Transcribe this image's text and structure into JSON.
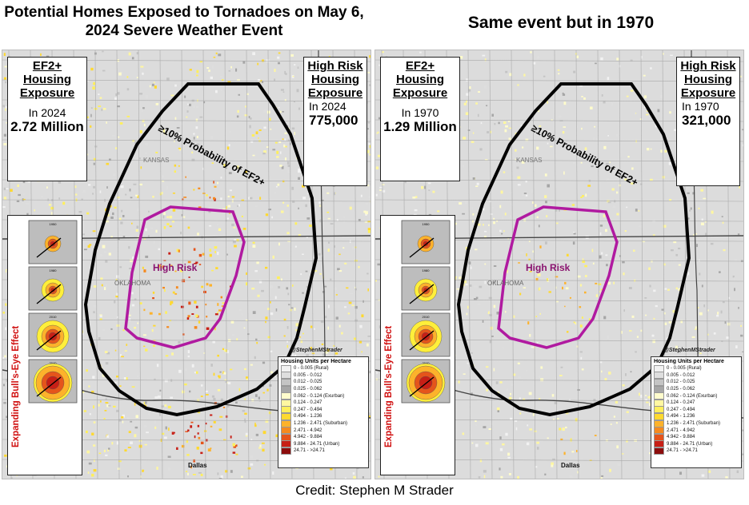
{
  "titles": {
    "left": "Potential Homes Exposed to Tornadoes on May 6, 2024 Severe Weather Event",
    "right": "Same event but in 1970"
  },
  "panels": [
    {
      "overall_heading": "EF2+ Housing Exposure",
      "overall_year": "In 2024",
      "overall_value": "2.72 Million",
      "highrisk_heading": "High Risk Housing Exposure",
      "highrisk_year": "In 2024",
      "highrisk_value": "775,000"
    },
    {
      "overall_heading": "EF2+ Housing Exposure",
      "overall_year": "In 1970",
      "overall_value": "1.29 Million",
      "highrisk_heading": "High Risk Housing Exposure",
      "highrisk_year": "In 1970",
      "highrisk_value": "321,000"
    }
  ],
  "map_labels": {
    "probability": "≥10% Probability of EF2+",
    "high_risk": "High Risk",
    "state_kansas": "KANSAS",
    "state_oklahoma": "OKLAHOMA",
    "city_dallas": "Dallas",
    "handle": "@StephenMStrader"
  },
  "bulls_eye": {
    "title": "Expanding Bull's-Eye Effect",
    "years": [
      "1950",
      "1980",
      "2010",
      "2040"
    ]
  },
  "legend": {
    "title": "Housing Units per Hectare",
    "items": [
      {
        "label": "0 - 0.005 (Rural)",
        "color": "#f2f2f2"
      },
      {
        "label": "0.005 - 0.012",
        "color": "#dedede"
      },
      {
        "label": "0.012 - 0.025",
        "color": "#c4c4c4"
      },
      {
        "label": "0.025 - 0.062",
        "color": "#a6a6a6"
      },
      {
        "label": "0.062 - 0.124 (Exurban)",
        "color": "#fffccc"
      },
      {
        "label": "0.124 - 0.247",
        "color": "#fff7a1"
      },
      {
        "label": "0.247 - 0.494",
        "color": "#ffef5c"
      },
      {
        "label": "0.494 - 1.236",
        "color": "#ffd92f"
      },
      {
        "label": "1.236 - 2.471 (Suburban)",
        "color": "#fdb22b"
      },
      {
        "label": "2.471 - 4.942",
        "color": "#f58a1f"
      },
      {
        "label": "4.942 - 9.884",
        "color": "#e5541b"
      },
      {
        "label": "9.884 - 24.71 (Urban)",
        "color": "#c71f16"
      },
      {
        "label": "24.71 - >24.71",
        "color": "#8c0d0d"
      }
    ]
  },
  "credit": "Credit: Stephen M Strader",
  "colors": {
    "outline_ef2": "#000000",
    "outline_high_risk": "#b01aa0",
    "map_background": "#dcdcdc"
  }
}
